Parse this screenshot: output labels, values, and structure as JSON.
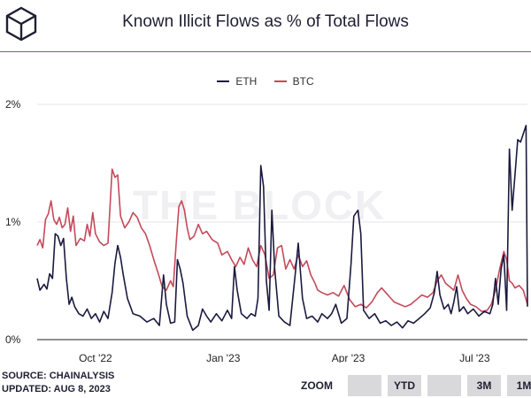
{
  "title": "Known Illicit Flows as % of Total Flows",
  "watermark": "THE BLOCK",
  "legend": [
    {
      "name": "ETH",
      "color": "#1b1a3f"
    },
    {
      "name": "BTC",
      "color": "#c44a5a"
    }
  ],
  "footer": {
    "source": "SOURCE: CHAINALYSIS",
    "updated": "UPDATED: AUG 8, 2023"
  },
  "zoom": {
    "label": "ZOOM",
    "buttons": [
      "",
      "YTD",
      "",
      "3M",
      "1M"
    ]
  },
  "chart_data": {
    "type": "line",
    "title": "Known Illicit Flows as % of Total Flows",
    "xlabel": "",
    "ylabel": "",
    "x_ticks": [
      "Oct '22",
      "Jan '23",
      "Apr '23",
      "Jul '23"
    ],
    "y_ticks": [
      "0%",
      "1%",
      "2%"
    ],
    "ylim": [
      0,
      2
    ],
    "x_range": [
      "2022-08-20",
      "2023-08-08"
    ],
    "grid": "horizontal",
    "legend_position": "top-center",
    "series": [
      {
        "name": "ETH",
        "color": "#1b1a3f",
        "points": [
          [
            "2022-08-20",
            0.52
          ],
          [
            "2022-08-22",
            0.42
          ],
          [
            "2022-08-25",
            0.47
          ],
          [
            "2022-08-27",
            0.43
          ],
          [
            "2022-08-29",
            0.56
          ],
          [
            "2022-08-31",
            0.52
          ],
          [
            "2022-09-02",
            0.9
          ],
          [
            "2022-09-04",
            0.88
          ],
          [
            "2022-09-06",
            0.8
          ],
          [
            "2022-09-08",
            0.86
          ],
          [
            "2022-09-10",
            0.52
          ],
          [
            "2022-09-12",
            0.3
          ],
          [
            "2022-09-14",
            0.36
          ],
          [
            "2022-09-16",
            0.28
          ],
          [
            "2022-09-19",
            0.22
          ],
          [
            "2022-09-22",
            0.2
          ],
          [
            "2022-09-25",
            0.26
          ],
          [
            "2022-09-28",
            0.18
          ],
          [
            "2022-10-01",
            0.22
          ],
          [
            "2022-10-04",
            0.15
          ],
          [
            "2022-10-07",
            0.24
          ],
          [
            "2022-10-10",
            0.18
          ],
          [
            "2022-10-13",
            0.4
          ],
          [
            "2022-10-15",
            0.65
          ],
          [
            "2022-10-17",
            0.8
          ],
          [
            "2022-10-19",
            0.7
          ],
          [
            "2022-10-21",
            0.55
          ],
          [
            "2022-10-24",
            0.35
          ],
          [
            "2022-10-28",
            0.22
          ],
          [
            "2022-11-02",
            0.2
          ],
          [
            "2022-11-07",
            0.15
          ],
          [
            "2022-11-12",
            0.18
          ],
          [
            "2022-11-16",
            0.12
          ],
          [
            "2022-11-19",
            0.55
          ],
          [
            "2022-11-21",
            0.3
          ],
          [
            "2022-11-24",
            0.14
          ],
          [
            "2022-11-27",
            0.15
          ],
          [
            "2022-11-29",
            0.68
          ],
          [
            "2022-12-01",
            0.6
          ],
          [
            "2022-12-03",
            0.48
          ],
          [
            "2022-12-06",
            0.2
          ],
          [
            "2022-12-10",
            0.08
          ],
          [
            "2022-12-14",
            0.12
          ],
          [
            "2022-12-17",
            0.26
          ],
          [
            "2022-12-20",
            0.2
          ],
          [
            "2022-12-23",
            0.15
          ],
          [
            "2022-12-27",
            0.22
          ],
          [
            "2022-12-31",
            0.16
          ],
          [
            "2023-01-04",
            0.25
          ],
          [
            "2023-01-07",
            0.18
          ],
          [
            "2023-01-09",
            0.62
          ],
          [
            "2023-01-11",
            0.42
          ],
          [
            "2023-01-14",
            0.22
          ],
          [
            "2023-01-18",
            0.18
          ],
          [
            "2023-01-21",
            0.22
          ],
          [
            "2023-01-24",
            0.2
          ],
          [
            "2023-01-26",
            0.35
          ],
          [
            "2023-01-28",
            1.48
          ],
          [
            "2023-01-30",
            1.3
          ],
          [
            "2023-02-01",
            0.5
          ],
          [
            "2023-02-03",
            0.25
          ],
          [
            "2023-02-05",
            1.1
          ],
          [
            "2023-02-07",
            0.6
          ],
          [
            "2023-02-10",
            0.2
          ],
          [
            "2023-02-14",
            0.15
          ],
          [
            "2023-02-18",
            0.12
          ],
          [
            "2023-02-22",
            0.58
          ],
          [
            "2023-02-24",
            0.82
          ],
          [
            "2023-02-27",
            0.35
          ],
          [
            "2023-03-02",
            0.18
          ],
          [
            "2023-03-06",
            0.2
          ],
          [
            "2023-03-10",
            0.15
          ],
          [
            "2023-03-13",
            0.22
          ],
          [
            "2023-03-17",
            0.18
          ],
          [
            "2023-03-20",
            0.22
          ],
          [
            "2023-03-23",
            0.3
          ],
          [
            "2023-03-27",
            0.14
          ],
          [
            "2023-03-31",
            0.18
          ],
          [
            "2023-04-03",
            0.65
          ],
          [
            "2023-04-05",
            1.05
          ],
          [
            "2023-04-08",
            1.1
          ],
          [
            "2023-04-10",
            0.9
          ],
          [
            "2023-04-12",
            0.25
          ],
          [
            "2023-04-16",
            0.18
          ],
          [
            "2023-04-20",
            0.22
          ],
          [
            "2023-04-24",
            0.14
          ],
          [
            "2023-04-28",
            0.16
          ],
          [
            "2023-05-02",
            0.12
          ],
          [
            "2023-05-06",
            0.15
          ],
          [
            "2023-05-10",
            0.1
          ],
          [
            "2023-05-14",
            0.16
          ],
          [
            "2023-05-18",
            0.14
          ],
          [
            "2023-05-22",
            0.18
          ],
          [
            "2023-05-26",
            0.22
          ],
          [
            "2023-05-30",
            0.27
          ],
          [
            "2023-06-02",
            0.4
          ],
          [
            "2023-06-04",
            0.58
          ],
          [
            "2023-06-06",
            0.38
          ],
          [
            "2023-06-09",
            0.26
          ],
          [
            "2023-06-12",
            0.3
          ],
          [
            "2023-06-14",
            0.22
          ],
          [
            "2023-06-16",
            0.32
          ],
          [
            "2023-06-18",
            0.45
          ],
          [
            "2023-06-20",
            0.24
          ],
          [
            "2023-06-23",
            0.28
          ],
          [
            "2023-06-26",
            0.22
          ],
          [
            "2023-06-30",
            0.26
          ],
          [
            "2023-07-04",
            0.2
          ],
          [
            "2023-07-08",
            0.24
          ],
          [
            "2023-07-12",
            0.22
          ],
          [
            "2023-07-14",
            0.3
          ],
          [
            "2023-07-16",
            0.52
          ],
          [
            "2023-07-18",
            0.3
          ],
          [
            "2023-07-20",
            0.6
          ],
          [
            "2023-07-22",
            0.72
          ],
          [
            "2023-07-24",
            0.25
          ],
          [
            "2023-07-26",
            1.62
          ],
          [
            "2023-07-28",
            1.1
          ],
          [
            "2023-07-30",
            1.4
          ],
          [
            "2023-08-01",
            1.7
          ],
          [
            "2023-08-03",
            1.68
          ],
          [
            "2023-08-05",
            1.75
          ],
          [
            "2023-08-07",
            1.82
          ],
          [
            "2023-08-08",
            0.28
          ]
        ]
      },
      {
        "name": "BTC",
        "color": "#c44a5a",
        "points": [
          [
            "2022-08-20",
            0.8
          ],
          [
            "2022-08-22",
            0.85
          ],
          [
            "2022-08-24",
            0.78
          ],
          [
            "2022-08-26",
            1.02
          ],
          [
            "2022-08-28",
            1.07
          ],
          [
            "2022-08-30",
            1.18
          ],
          [
            "2022-09-01",
            1.02
          ],
          [
            "2022-09-03",
            0.98
          ],
          [
            "2022-09-05",
            1.04
          ],
          [
            "2022-09-07",
            0.95
          ],
          [
            "2022-09-09",
            0.98
          ],
          [
            "2022-09-11",
            1.12
          ],
          [
            "2022-09-13",
            0.92
          ],
          [
            "2022-09-15",
            1.05
          ],
          [
            "2022-09-17",
            0.8
          ],
          [
            "2022-09-20",
            0.86
          ],
          [
            "2022-09-23",
            0.84
          ],
          [
            "2022-09-25",
            0.98
          ],
          [
            "2022-09-27",
            0.88
          ],
          [
            "2022-09-29",
            1.08
          ],
          [
            "2022-10-01",
            0.9
          ],
          [
            "2022-10-04",
            0.83
          ],
          [
            "2022-10-07",
            0.8
          ],
          [
            "2022-10-10",
            0.82
          ],
          [
            "2022-10-13",
            1.45
          ],
          [
            "2022-10-15",
            1.38
          ],
          [
            "2022-10-17",
            1.4
          ],
          [
            "2022-10-19",
            1.05
          ],
          [
            "2022-10-22",
            0.95
          ],
          [
            "2022-10-25",
            1.0
          ],
          [
            "2022-10-28",
            1.08
          ],
          [
            "2022-10-31",
            1.04
          ],
          [
            "2022-11-03",
            0.95
          ],
          [
            "2022-11-06",
            0.9
          ],
          [
            "2022-11-09",
            0.8
          ],
          [
            "2022-11-12",
            0.68
          ],
          [
            "2022-11-15",
            0.57
          ],
          [
            "2022-11-18",
            0.45
          ],
          [
            "2022-11-21",
            0.42
          ],
          [
            "2022-11-24",
            0.5
          ],
          [
            "2022-11-26",
            0.45
          ],
          [
            "2022-11-28",
            0.8
          ],
          [
            "2022-11-30",
            1.13
          ],
          [
            "2022-12-02",
            1.18
          ],
          [
            "2022-12-04",
            1.1
          ],
          [
            "2022-12-06",
            0.95
          ],
          [
            "2022-12-08",
            0.85
          ],
          [
            "2022-12-11",
            0.88
          ],
          [
            "2022-12-14",
            0.98
          ],
          [
            "2022-12-17",
            0.9
          ],
          [
            "2022-12-20",
            0.92
          ],
          [
            "2022-12-24",
            0.85
          ],
          [
            "2022-12-28",
            0.82
          ],
          [
            "2022-12-31",
            0.72
          ],
          [
            "2023-01-04",
            0.75
          ],
          [
            "2023-01-07",
            0.68
          ],
          [
            "2023-01-10",
            0.62
          ],
          [
            "2023-01-13",
            0.7
          ],
          [
            "2023-01-16",
            0.64
          ],
          [
            "2023-01-19",
            0.78
          ],
          [
            "2023-01-22",
            0.68
          ],
          [
            "2023-01-25",
            0.62
          ],
          [
            "2023-01-28",
            0.8
          ],
          [
            "2023-01-31",
            0.72
          ],
          [
            "2023-02-03",
            0.52
          ],
          [
            "2023-02-06",
            0.55
          ],
          [
            "2023-02-09",
            0.78
          ],
          [
            "2023-02-12",
            0.8
          ],
          [
            "2023-02-15",
            0.6
          ],
          [
            "2023-02-18",
            0.68
          ],
          [
            "2023-02-21",
            0.6
          ],
          [
            "2023-02-24",
            0.72
          ],
          [
            "2023-02-27",
            0.62
          ],
          [
            "2023-03-02",
            0.67
          ],
          [
            "2023-03-05",
            0.55
          ],
          [
            "2023-03-08",
            0.48
          ],
          [
            "2023-03-10",
            0.42
          ],
          [
            "2023-03-13",
            0.4
          ],
          [
            "2023-03-17",
            0.38
          ],
          [
            "2023-03-21",
            0.4
          ],
          [
            "2023-03-25",
            0.37
          ],
          [
            "2023-03-29",
            0.46
          ],
          [
            "2023-04-02",
            0.34
          ],
          [
            "2023-04-06",
            0.28
          ],
          [
            "2023-04-10",
            0.3
          ],
          [
            "2023-04-14",
            0.27
          ],
          [
            "2023-04-18",
            0.32
          ],
          [
            "2023-04-22",
            0.4
          ],
          [
            "2023-04-25",
            0.44
          ],
          [
            "2023-04-28",
            0.4
          ],
          [
            "2023-05-01",
            0.36
          ],
          [
            "2023-05-04",
            0.32
          ],
          [
            "2023-05-08",
            0.3
          ],
          [
            "2023-05-12",
            0.28
          ],
          [
            "2023-05-16",
            0.3
          ],
          [
            "2023-05-20",
            0.34
          ],
          [
            "2023-05-24",
            0.38
          ],
          [
            "2023-05-28",
            0.36
          ],
          [
            "2023-06-01",
            0.4
          ],
          [
            "2023-06-04",
            0.5
          ],
          [
            "2023-06-07",
            0.55
          ],
          [
            "2023-06-10",
            0.48
          ],
          [
            "2023-06-13",
            0.45
          ],
          [
            "2023-06-16",
            0.42
          ],
          [
            "2023-06-19",
            0.55
          ],
          [
            "2023-06-22",
            0.42
          ],
          [
            "2023-06-25",
            0.35
          ],
          [
            "2023-06-28",
            0.3
          ],
          [
            "2023-07-02",
            0.28
          ],
          [
            "2023-07-06",
            0.24
          ],
          [
            "2023-07-10",
            0.25
          ],
          [
            "2023-07-13",
            0.3
          ],
          [
            "2023-07-16",
            0.42
          ],
          [
            "2023-07-19",
            0.6
          ],
          [
            "2023-07-22",
            0.75
          ],
          [
            "2023-07-24",
            0.68
          ],
          [
            "2023-07-26",
            0.5
          ],
          [
            "2023-07-28",
            0.48
          ],
          [
            "2023-07-30",
            0.44
          ],
          [
            "2023-08-02",
            0.46
          ],
          [
            "2023-08-05",
            0.42
          ],
          [
            "2023-08-08",
            0.3
          ]
        ]
      }
    ]
  }
}
